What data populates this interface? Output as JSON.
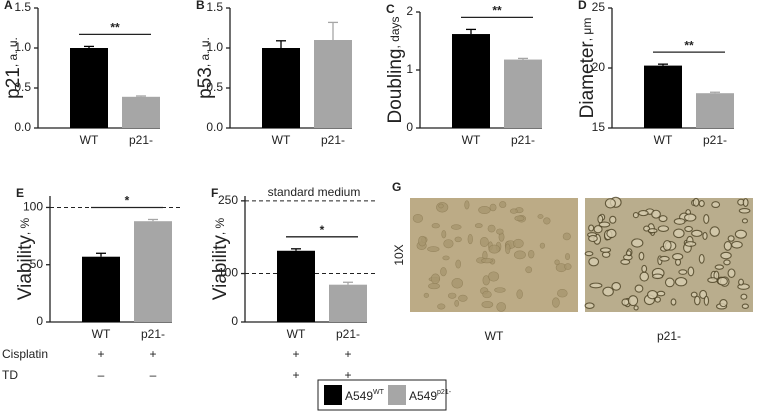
{
  "chart_data": [
    {
      "type": "bar",
      "panel": "A",
      "ylabel": "p21",
      "ylabel_unit": ", a. u.",
      "categories": [
        "WT",
        "p21-"
      ],
      "values": [
        1.0,
        0.39
      ],
      "errors": [
        0.02,
        0.01
      ],
      "ylim": [
        0,
        1.5
      ],
      "yticks": [
        {
          "value": 0,
          "label": "0.0"
        },
        0.5,
        {
          "value": 1,
          "label": "1.0"
        },
        1.5
      ],
      "significance": "**"
    },
    {
      "type": "bar",
      "panel": "B",
      "ylabel": "p53",
      "ylabel_unit": ", a. u.",
      "categories": [
        "WT",
        "p21-"
      ],
      "values": [
        1.0,
        1.1
      ],
      "errors": [
        0.09,
        0.22
      ],
      "ylim": [
        0,
        1.5
      ],
      "yticks": [
        {
          "value": 0,
          "label": "0.0"
        },
        0.5,
        {
          "value": 1,
          "label": "1.0"
        },
        1.5
      ]
    },
    {
      "type": "bar",
      "panel": "C",
      "ylabel": "Doubling",
      "ylabel_unit": ", days",
      "categories": [
        "WT",
        "p21-"
      ],
      "values": [
        1.62,
        1.18
      ],
      "errors": [
        0.08,
        0.02
      ],
      "ylim": [
        0,
        2
      ],
      "yticks": [
        0,
        1,
        2
      ],
      "significance": "**"
    },
    {
      "type": "bar",
      "panel": "D",
      "ylabel": "Diameter",
      "ylabel_unit": ", μm",
      "categories": [
        "WT",
        "p21-"
      ],
      "values": [
        20.2,
        17.9
      ],
      "errors": [
        0.12,
        0.08
      ],
      "ylim": [
        15,
        25
      ],
      "yticks": [
        15,
        20,
        25
      ],
      "significance": "**"
    },
    {
      "type": "bar",
      "panel": "E",
      "ylabel": "Viability",
      "ylabel_unit": ", %",
      "categories": [
        "WT",
        "p21-"
      ],
      "values": [
        57,
        88
      ],
      "errors": [
        3,
        1.5
      ],
      "ylim": [
        0,
        110
      ],
      "yticks": [
        0,
        50,
        100
      ],
      "significance": "*",
      "ref_lines": [
        100
      ],
      "treatments": [
        {
          "name": "Cisplatin",
          "marks": [
            "+",
            "+"
          ]
        },
        {
          "name": "TD",
          "marks": [
            "–",
            "–"
          ]
        }
      ]
    },
    {
      "type": "bar",
      "panel": "F",
      "ylabel": "Viability",
      "ylabel_unit": ", %",
      "categories": [
        "WT",
        "p21-"
      ],
      "values": [
        147,
        77
      ],
      "errors": [
        4,
        5
      ],
      "ylim": [
        0,
        260
      ],
      "yticks": [
        0,
        100,
        250
      ],
      "significance": "*",
      "ref_lines": [
        100,
        250
      ],
      "annotation": "standard medium",
      "treatments": [
        {
          "marks": [
            "+",
            "+"
          ]
        },
        {
          "marks": [
            "+",
            "+"
          ]
        }
      ]
    }
  ],
  "legend": [
    {
      "name": "A549",
      "superscript": "WT",
      "color": "#000000"
    },
    {
      "name": "A549",
      "superscript": "p21-",
      "color": "#a6a6a6"
    }
  ],
  "image_panel": {
    "panel": "G",
    "magnification": "10X",
    "labels": [
      "WT",
      "p21-"
    ]
  }
}
